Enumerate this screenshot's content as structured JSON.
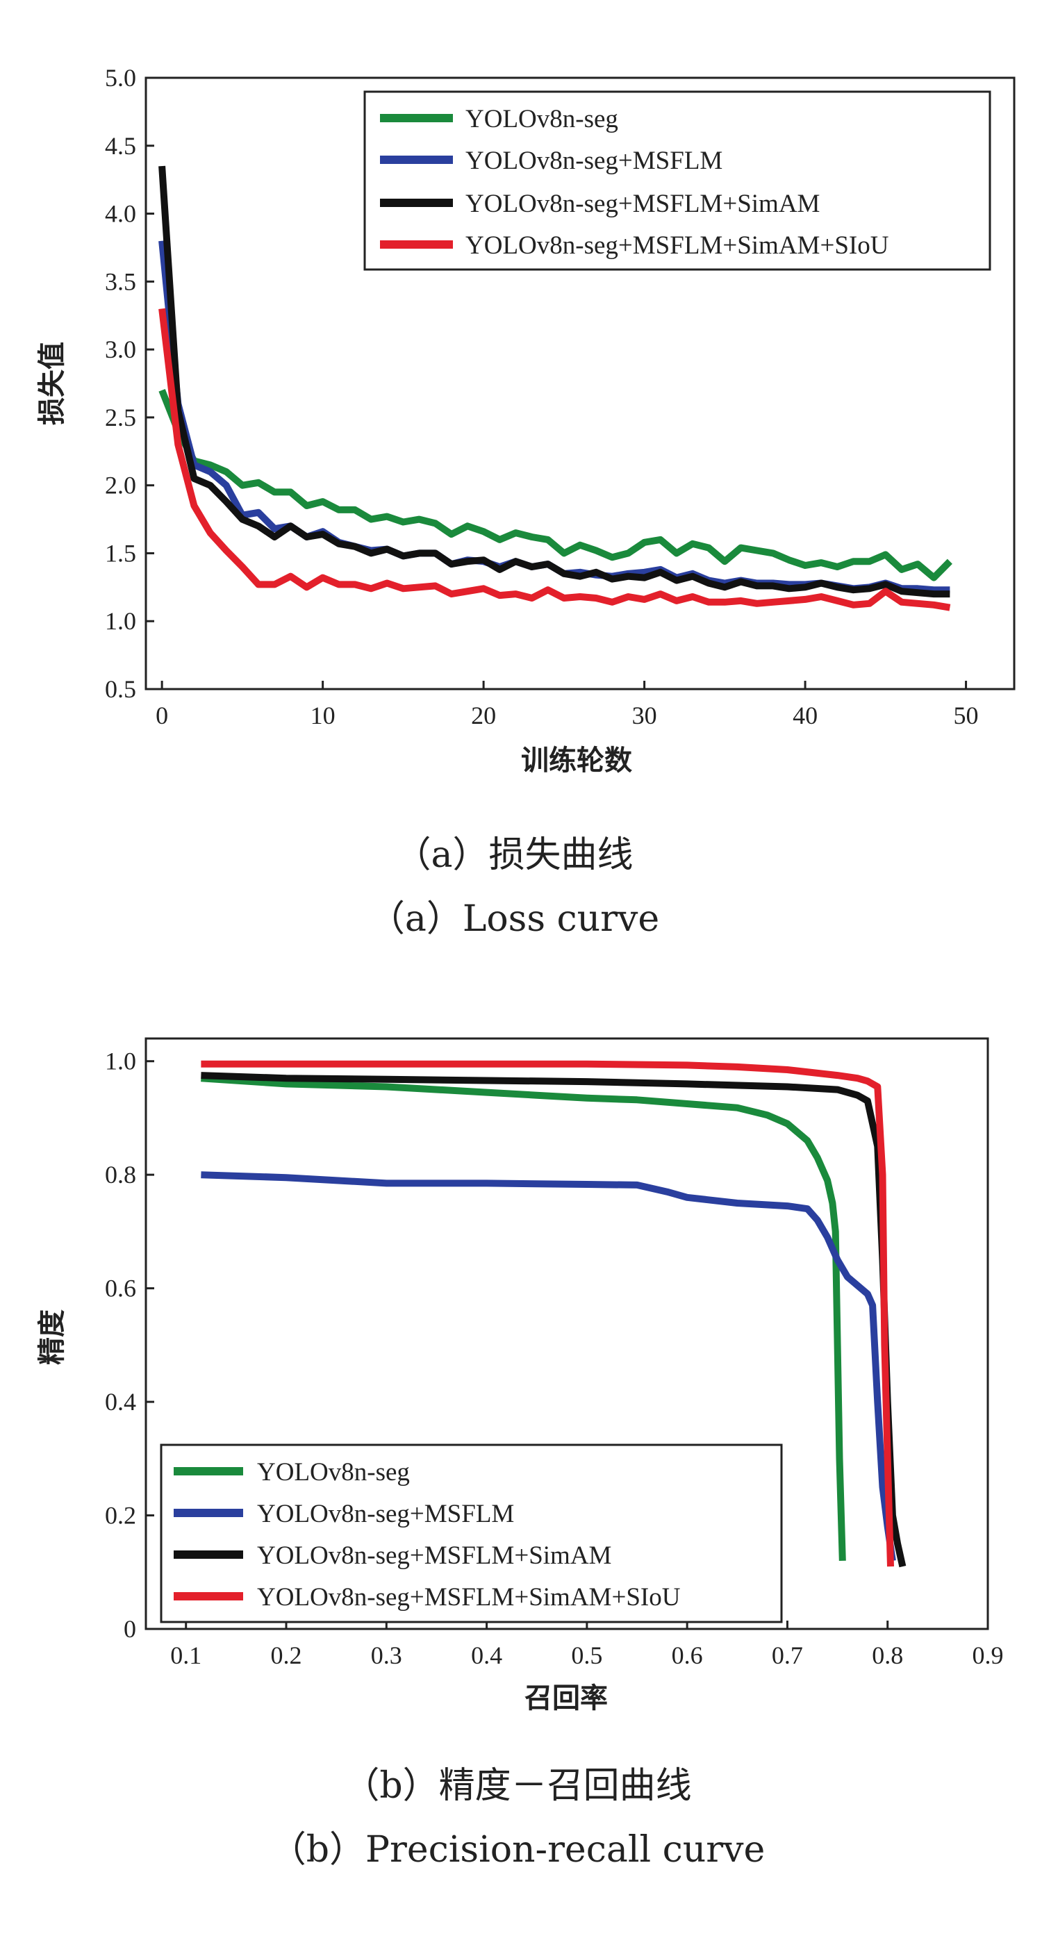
{
  "colors": {
    "green": "#1a8a3c",
    "blue": "#2a3f9e",
    "black": "#111111",
    "red": "#e3202b",
    "axis": "#222222"
  },
  "chart_data": [
    {
      "type": "line",
      "id": "loss",
      "xlabel": "训练轮数",
      "ylabel": "损失值",
      "xlim": [
        -1,
        53
      ],
      "ylim": [
        0.5,
        5.0
      ],
      "xticks": [
        0,
        10,
        20,
        30,
        40,
        50
      ],
      "yticks": [
        0.5,
        1.0,
        1.5,
        2.0,
        2.5,
        3.0,
        3.5,
        4.0,
        4.5,
        5.0
      ],
      "ytick_labels": [
        "0.5",
        "1.0",
        "1.5",
        "2.0",
        "2.5",
        "3.0",
        "3.5",
        "4.0",
        "4.5",
        "5.0"
      ],
      "legend_position": "top-right",
      "caption_cn": "（a）损失曲线",
      "caption_en": "（a）Loss curve",
      "series": [
        {
          "name": "YOLOv8n-seg",
          "color": "#1a8a3c",
          "x": [
            0,
            1,
            2,
            3,
            4,
            5,
            6,
            7,
            8,
            9,
            10,
            11,
            12,
            13,
            14,
            15,
            16,
            17,
            18,
            19,
            20,
            21,
            22,
            23,
            24,
            25,
            26,
            27,
            28,
            29,
            30,
            31,
            32,
            33,
            34,
            35,
            36,
            37,
            38,
            39,
            40,
            41,
            42,
            43,
            44,
            45,
            46,
            47,
            48,
            49
          ],
          "y": [
            2.7,
            2.4,
            2.18,
            2.15,
            2.1,
            2.0,
            2.02,
            1.95,
            1.95,
            1.85,
            1.88,
            1.82,
            1.82,
            1.75,
            1.77,
            1.73,
            1.75,
            1.72,
            1.64,
            1.7,
            1.66,
            1.6,
            1.65,
            1.62,
            1.6,
            1.5,
            1.56,
            1.52,
            1.47,
            1.5,
            1.58,
            1.6,
            1.5,
            1.57,
            1.54,
            1.44,
            1.54,
            1.52,
            1.5,
            1.45,
            1.41,
            1.43,
            1.4,
            1.44,
            1.44,
            1.49,
            1.38,
            1.42,
            1.32,
            1.44
          ]
        },
        {
          "name": "YOLOv8n-seg+MSFLM",
          "color": "#2a3f9e",
          "x": [
            0,
            1,
            2,
            3,
            4,
            5,
            6,
            7,
            8,
            9,
            10,
            11,
            12,
            13,
            14,
            15,
            16,
            17,
            18,
            19,
            20,
            21,
            22,
            23,
            24,
            25,
            26,
            27,
            28,
            29,
            30,
            31,
            32,
            33,
            34,
            35,
            36,
            37,
            38,
            39,
            40,
            41,
            42,
            43,
            44,
            45,
            46,
            47,
            48,
            49
          ],
          "y": [
            3.8,
            2.6,
            2.15,
            2.1,
            2.0,
            1.78,
            1.8,
            1.68,
            1.7,
            1.62,
            1.66,
            1.58,
            1.55,
            1.52,
            1.53,
            1.48,
            1.5,
            1.5,
            1.42,
            1.45,
            1.44,
            1.4,
            1.44,
            1.4,
            1.42,
            1.35,
            1.36,
            1.34,
            1.33,
            1.35,
            1.36,
            1.38,
            1.32,
            1.35,
            1.3,
            1.28,
            1.3,
            1.28,
            1.28,
            1.27,
            1.27,
            1.28,
            1.26,
            1.24,
            1.25,
            1.28,
            1.24,
            1.24,
            1.23,
            1.23
          ]
        },
        {
          "name": "YOLOv8n-seg+MSFLM+SimAM",
          "color": "#111111",
          "x": [
            0,
            1,
            2,
            3,
            4,
            5,
            6,
            7,
            8,
            9,
            10,
            11,
            12,
            13,
            14,
            15,
            16,
            17,
            18,
            19,
            20,
            21,
            22,
            23,
            24,
            25,
            26,
            27,
            28,
            29,
            30,
            31,
            32,
            33,
            34,
            35,
            36,
            37,
            38,
            39,
            40,
            41,
            42,
            43,
            44,
            45,
            46,
            47,
            48,
            49
          ],
          "y": [
            4.35,
            2.55,
            2.05,
            2.0,
            1.88,
            1.75,
            1.7,
            1.62,
            1.7,
            1.62,
            1.64,
            1.57,
            1.55,
            1.5,
            1.53,
            1.48,
            1.5,
            1.5,
            1.42,
            1.44,
            1.45,
            1.38,
            1.44,
            1.4,
            1.42,
            1.35,
            1.33,
            1.36,
            1.31,
            1.33,
            1.32,
            1.36,
            1.3,
            1.33,
            1.28,
            1.25,
            1.29,
            1.26,
            1.26,
            1.24,
            1.25,
            1.28,
            1.25,
            1.23,
            1.24,
            1.27,
            1.22,
            1.21,
            1.2,
            1.2
          ]
        },
        {
          "name": "YOLOv8n-seg+MSFLM+SimAM+SIoU",
          "color": "#e3202b",
          "x": [
            0,
            1,
            2,
            3,
            4,
            5,
            6,
            7,
            8,
            9,
            10,
            11,
            12,
            13,
            14,
            15,
            16,
            17,
            18,
            19,
            20,
            21,
            22,
            23,
            24,
            25,
            26,
            27,
            28,
            29,
            30,
            31,
            32,
            33,
            34,
            35,
            36,
            37,
            38,
            39,
            40,
            41,
            42,
            43,
            44,
            45,
            46,
            47,
            48,
            49
          ],
          "y": [
            3.3,
            2.3,
            1.85,
            1.65,
            1.52,
            1.4,
            1.27,
            1.27,
            1.33,
            1.25,
            1.32,
            1.27,
            1.27,
            1.24,
            1.28,
            1.24,
            1.25,
            1.26,
            1.2,
            1.22,
            1.24,
            1.19,
            1.2,
            1.17,
            1.23,
            1.17,
            1.18,
            1.17,
            1.14,
            1.18,
            1.16,
            1.2,
            1.15,
            1.18,
            1.14,
            1.14,
            1.15,
            1.13,
            1.14,
            1.15,
            1.16,
            1.18,
            1.15,
            1.12,
            1.13,
            1.22,
            1.14,
            1.13,
            1.12,
            1.1
          ]
        }
      ]
    },
    {
      "type": "line",
      "id": "pr",
      "xlabel": "召回率",
      "ylabel": "精度",
      "xlim": [
        0.06,
        0.9
      ],
      "ylim": [
        0,
        1.04
      ],
      "xticks": [
        0.1,
        0.2,
        0.3,
        0.4,
        0.5,
        0.6,
        0.7,
        0.8,
        0.9
      ],
      "xtick_labels": [
        "0.1",
        "0.2",
        "0.3",
        "0.4",
        "0.5",
        "0.6",
        "0.7",
        "0.8",
        "0.9"
      ],
      "yticks": [
        0,
        0.2,
        0.4,
        0.6,
        0.8,
        1.0
      ],
      "ytick_labels": [
        "0",
        "0.2",
        "0.4",
        "0.6",
        "0.8",
        "1.0"
      ],
      "legend_position": "bottom-left",
      "caption_cn": "（b）精度－召回曲线",
      "caption_en": "（b）Precision-recall curve",
      "series": [
        {
          "name": "YOLOv8n-seg",
          "color": "#1a8a3c",
          "x": [
            0.115,
            0.2,
            0.3,
            0.4,
            0.45,
            0.5,
            0.55,
            0.6,
            0.65,
            0.68,
            0.7,
            0.72,
            0.73,
            0.74,
            0.745,
            0.748,
            0.75,
            0.752,
            0.755
          ],
          "y": [
            0.97,
            0.96,
            0.955,
            0.945,
            0.94,
            0.935,
            0.932,
            0.925,
            0.918,
            0.905,
            0.89,
            0.86,
            0.83,
            0.79,
            0.75,
            0.7,
            0.5,
            0.3,
            0.12
          ]
        },
        {
          "name": "YOLOv8n-seg+MSFLM",
          "color": "#2a3f9e",
          "x": [
            0.115,
            0.2,
            0.3,
            0.4,
            0.5,
            0.55,
            0.58,
            0.6,
            0.65,
            0.7,
            0.72,
            0.73,
            0.74,
            0.75,
            0.76,
            0.78,
            0.785,
            0.79,
            0.795,
            0.8,
            0.805
          ],
          "y": [
            0.8,
            0.795,
            0.785,
            0.785,
            0.783,
            0.782,
            0.77,
            0.76,
            0.75,
            0.745,
            0.74,
            0.72,
            0.69,
            0.65,
            0.62,
            0.59,
            0.57,
            0.4,
            0.25,
            0.18,
            0.12
          ]
        },
        {
          "name": "YOLOv8n-seg+MSFLM+SimAM",
          "color": "#111111",
          "x": [
            0.115,
            0.2,
            0.3,
            0.4,
            0.5,
            0.6,
            0.7,
            0.75,
            0.77,
            0.78,
            0.79,
            0.795,
            0.8,
            0.805,
            0.81,
            0.815
          ],
          "y": [
            0.975,
            0.97,
            0.968,
            0.966,
            0.964,
            0.96,
            0.955,
            0.95,
            0.94,
            0.93,
            0.85,
            0.65,
            0.4,
            0.2,
            0.15,
            0.11
          ]
        },
        {
          "name": "YOLOv8n-seg+MSFLM+SimAM+SIoU",
          "color": "#e3202b",
          "x": [
            0.115,
            0.2,
            0.3,
            0.4,
            0.5,
            0.6,
            0.65,
            0.7,
            0.75,
            0.77,
            0.78,
            0.79,
            0.795,
            0.797,
            0.8,
            0.803
          ],
          "y": [
            0.995,
            0.995,
            0.995,
            0.995,
            0.995,
            0.993,
            0.99,
            0.985,
            0.975,
            0.97,
            0.965,
            0.955,
            0.8,
            0.5,
            0.3,
            0.11
          ]
        }
      ]
    }
  ]
}
